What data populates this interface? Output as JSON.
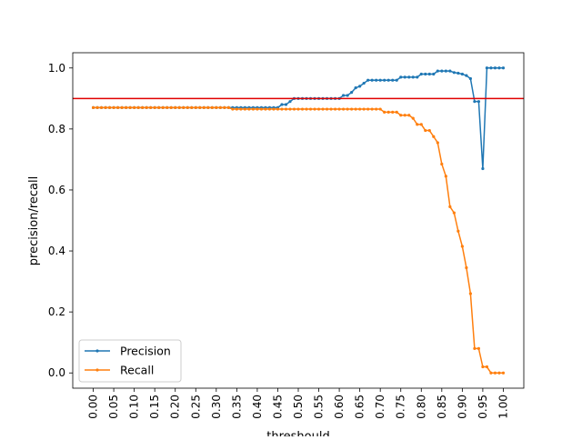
{
  "chart_data": {
    "type": "line",
    "xlabel": "threshould",
    "ylabel": "precision/recall",
    "xlim": [
      -0.05,
      1.05
    ],
    "ylim": [
      -0.05,
      1.05
    ],
    "grid": false,
    "legend_position": "lower-left",
    "x_ticks": [
      "0.00",
      "0.05",
      "0.10",
      "0.15",
      "0.20",
      "0.25",
      "0.30",
      "0.35",
      "0.40",
      "0.45",
      "0.50",
      "0.55",
      "0.60",
      "0.65",
      "0.70",
      "0.75",
      "0.80",
      "0.85",
      "0.90",
      "0.95",
      "1.00"
    ],
    "y_ticks": [
      "0.0",
      "0.2",
      "0.4",
      "0.6",
      "0.8",
      "1.0"
    ],
    "reference_line": {
      "y": 0.9,
      "color": "#e00000"
    },
    "series": [
      {
        "name": "Precision",
        "color": "#1f77b4",
        "x": [
          0.0,
          0.01,
          0.02,
          0.03,
          0.04,
          0.05,
          0.06,
          0.07,
          0.08,
          0.09,
          0.1,
          0.11,
          0.12,
          0.13,
          0.14,
          0.15,
          0.16,
          0.17,
          0.18,
          0.19,
          0.2,
          0.21,
          0.22,
          0.23,
          0.24,
          0.25,
          0.26,
          0.27,
          0.28,
          0.29,
          0.3,
          0.31,
          0.32,
          0.33,
          0.34,
          0.35,
          0.36,
          0.37,
          0.38,
          0.39,
          0.4,
          0.41,
          0.42,
          0.43,
          0.44,
          0.45,
          0.46,
          0.47,
          0.48,
          0.49,
          0.5,
          0.51,
          0.52,
          0.53,
          0.54,
          0.55,
          0.56,
          0.57,
          0.58,
          0.59,
          0.6,
          0.61,
          0.62,
          0.63,
          0.64,
          0.65,
          0.66,
          0.67,
          0.68,
          0.69,
          0.7,
          0.71,
          0.72,
          0.73,
          0.74,
          0.75,
          0.76,
          0.77,
          0.78,
          0.79,
          0.8,
          0.81,
          0.82,
          0.83,
          0.84,
          0.85,
          0.86,
          0.87,
          0.88,
          0.89,
          0.9,
          0.91,
          0.92,
          0.93,
          0.94,
          0.95,
          0.96,
          0.97,
          0.98,
          0.99,
          1.0
        ],
        "values": [
          0.87,
          0.87,
          0.87,
          0.87,
          0.87,
          0.87,
          0.87,
          0.87,
          0.87,
          0.87,
          0.87,
          0.87,
          0.87,
          0.87,
          0.87,
          0.87,
          0.87,
          0.87,
          0.87,
          0.87,
          0.87,
          0.87,
          0.87,
          0.87,
          0.87,
          0.87,
          0.87,
          0.87,
          0.87,
          0.87,
          0.87,
          0.87,
          0.87,
          0.87,
          0.87,
          0.87,
          0.87,
          0.87,
          0.87,
          0.87,
          0.87,
          0.87,
          0.87,
          0.87,
          0.87,
          0.87,
          0.88,
          0.88,
          0.89,
          0.9,
          0.9,
          0.9,
          0.9,
          0.9,
          0.9,
          0.9,
          0.9,
          0.9,
          0.9,
          0.9,
          0.9,
          0.91,
          0.91,
          0.92,
          0.935,
          0.94,
          0.95,
          0.96,
          0.96,
          0.96,
          0.96,
          0.96,
          0.96,
          0.96,
          0.96,
          0.97,
          0.97,
          0.97,
          0.97,
          0.97,
          0.98,
          0.98,
          0.98,
          0.98,
          0.99,
          0.99,
          0.99,
          0.99,
          0.985,
          0.983,
          0.98,
          0.975,
          0.965,
          0.89,
          0.89,
          0.67,
          1.0,
          1.0,
          1.0,
          1.0,
          1.0
        ]
      },
      {
        "name": "Recall",
        "color": "#ff7f0e",
        "x": [
          0.0,
          0.01,
          0.02,
          0.03,
          0.04,
          0.05,
          0.06,
          0.07,
          0.08,
          0.09,
          0.1,
          0.11,
          0.12,
          0.13,
          0.14,
          0.15,
          0.16,
          0.17,
          0.18,
          0.19,
          0.2,
          0.21,
          0.22,
          0.23,
          0.24,
          0.25,
          0.26,
          0.27,
          0.28,
          0.29,
          0.3,
          0.31,
          0.32,
          0.33,
          0.34,
          0.35,
          0.36,
          0.37,
          0.38,
          0.39,
          0.4,
          0.41,
          0.42,
          0.43,
          0.44,
          0.45,
          0.46,
          0.47,
          0.48,
          0.49,
          0.5,
          0.51,
          0.52,
          0.53,
          0.54,
          0.55,
          0.56,
          0.57,
          0.58,
          0.59,
          0.6,
          0.61,
          0.62,
          0.63,
          0.64,
          0.65,
          0.66,
          0.67,
          0.68,
          0.69,
          0.7,
          0.71,
          0.72,
          0.73,
          0.74,
          0.75,
          0.76,
          0.77,
          0.78,
          0.79,
          0.8,
          0.81,
          0.82,
          0.83,
          0.84,
          0.85,
          0.86,
          0.87,
          0.88,
          0.89,
          0.9,
          0.91,
          0.92,
          0.93,
          0.94,
          0.95,
          0.96,
          0.97,
          0.98,
          0.99,
          1.0
        ],
        "values": [
          0.87,
          0.87,
          0.87,
          0.87,
          0.87,
          0.87,
          0.87,
          0.87,
          0.87,
          0.87,
          0.87,
          0.87,
          0.87,
          0.87,
          0.87,
          0.87,
          0.87,
          0.87,
          0.87,
          0.87,
          0.87,
          0.87,
          0.87,
          0.87,
          0.87,
          0.87,
          0.87,
          0.87,
          0.87,
          0.87,
          0.87,
          0.87,
          0.87,
          0.87,
          0.865,
          0.865,
          0.865,
          0.865,
          0.865,
          0.865,
          0.865,
          0.865,
          0.865,
          0.865,
          0.865,
          0.865,
          0.865,
          0.865,
          0.865,
          0.865,
          0.865,
          0.865,
          0.865,
          0.865,
          0.865,
          0.865,
          0.865,
          0.865,
          0.865,
          0.865,
          0.865,
          0.865,
          0.865,
          0.865,
          0.865,
          0.865,
          0.865,
          0.865,
          0.865,
          0.865,
          0.865,
          0.855,
          0.855,
          0.855,
          0.855,
          0.845,
          0.845,
          0.845,
          0.835,
          0.815,
          0.815,
          0.795,
          0.795,
          0.775,
          0.755,
          0.685,
          0.645,
          0.545,
          0.525,
          0.465,
          0.415,
          0.345,
          0.26,
          0.08,
          0.08,
          0.02,
          0.02,
          0.0,
          0.0,
          0.0,
          0.0
        ]
      }
    ]
  }
}
